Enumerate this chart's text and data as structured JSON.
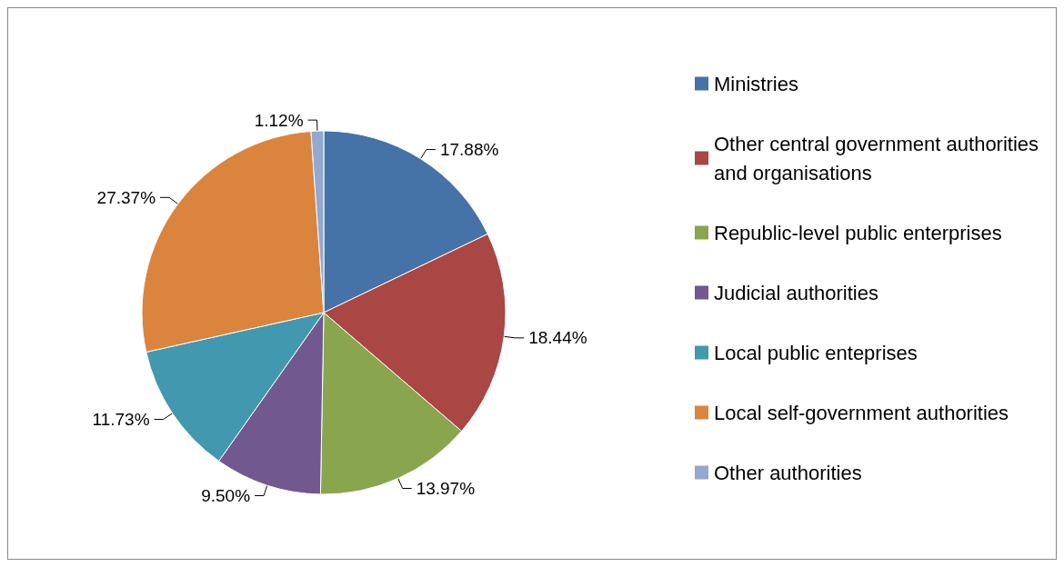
{
  "chart_data": {
    "type": "pie",
    "categories": [
      "Ministries",
      "Other central government authorities and organisations",
      "Republic-level public enterprises",
      "Judicial authorities",
      "Local public enteprises",
      "Local self-government authorities",
      "Other authorities"
    ],
    "values": [
      17.88,
      18.44,
      13.97,
      9.5,
      11.73,
      27.37,
      1.12
    ],
    "value_labels": [
      "17.88%",
      "18.44%",
      "13.97%",
      "9.50%",
      "11.73%",
      "27.37%",
      "1.12%"
    ],
    "colors": [
      "#4572a7",
      "#aa4643",
      "#89a54e",
      "#71588f",
      "#4198af",
      "#db843d",
      "#93a9cf"
    ],
    "legend": "right"
  }
}
